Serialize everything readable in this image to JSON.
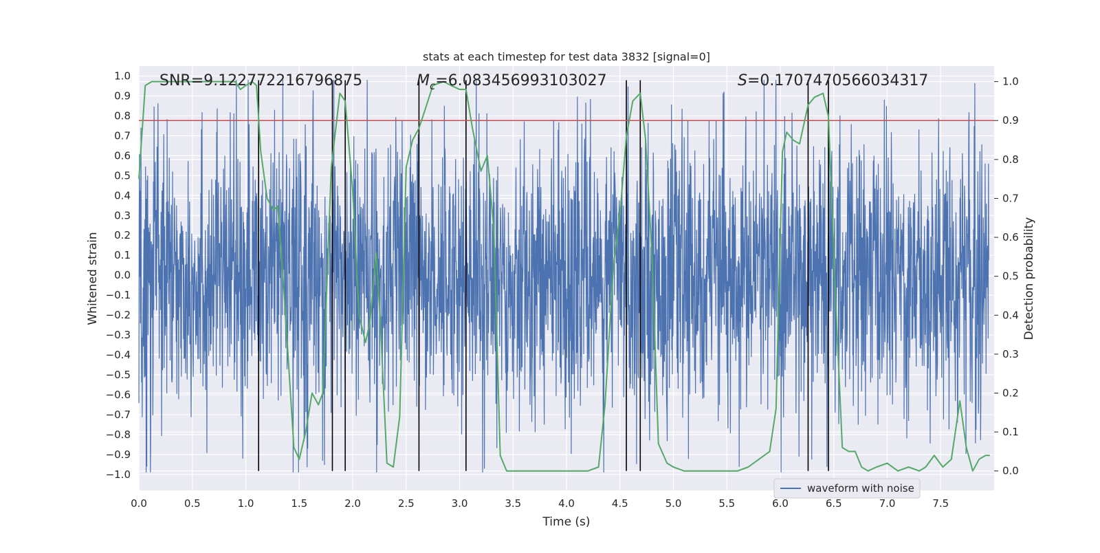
{
  "chart_data": {
    "type": "line",
    "title": "stats at each timestep for test data 3832 [signal=0]",
    "xlabel": "Time (s)",
    "ylabel_left": "Whitened strain",
    "ylabel_right": "Detection probability",
    "xlim": [
      0.0,
      8.0
    ],
    "ylim_left": [
      -1.08,
      1.05
    ],
    "ylim_right": [
      -0.05,
      1.04
    ],
    "x_ticks": [
      "0.0",
      "0.5",
      "1.0",
      "1.5",
      "2.0",
      "2.5",
      "3.0",
      "3.5",
      "4.0",
      "4.5",
      "5.0",
      "5.5",
      "6.0",
      "6.5",
      "7.0",
      "7.5"
    ],
    "y_left_ticks": [
      "1.0",
      "0.9",
      "0.8",
      "0.7",
      "0.6",
      "0.5",
      "0.4",
      "0.3",
      "0.2",
      "0.1",
      "0.0",
      "-0.1",
      "-0.2",
      "-0.3",
      "-0.4",
      "-0.5",
      "-0.6",
      "-0.7",
      "-0.8",
      "-0.9",
      "-1.0"
    ],
    "y_right_ticks": [
      "1.0",
      "0.9",
      "0.8",
      "0.7",
      "0.6",
      "0.5",
      "0.4",
      "0.3",
      "0.2",
      "0.1",
      "0.0"
    ],
    "grid": true,
    "legend_position": "lower-right",
    "annotations": {
      "snr": "SNR=9.122772216796875",
      "mc_symbol": "M",
      "mc_subscript": "c",
      "mc_value": "=6.083456993103027",
      "s_symbol": "S",
      "s_value": "=0.1707470566034317"
    },
    "threshold": 0.9,
    "vertical_lines": [
      1.12,
      1.81,
      1.93,
      2.62,
      3.06,
      4.56,
      4.69,
      6.26,
      6.45
    ],
    "series": [
      {
        "name": "waveform with noise",
        "axis": "left",
        "color": "#4c72b0",
        "description_level": "dense noise spanning roughly -0.9 to 0.9"
      },
      {
        "axis": "right",
        "color": "#55a868",
        "x": [
          0.0,
          0.06,
          0.12,
          0.2,
          0.4,
          0.6,
          0.8,
          0.9,
          0.95,
          1.0,
          1.06,
          1.1,
          1.14,
          1.2,
          1.26,
          1.3,
          1.36,
          1.45,
          1.5,
          1.56,
          1.62,
          1.68,
          1.72,
          1.8,
          1.88,
          1.93,
          2.0,
          2.06,
          2.12,
          2.16,
          2.22,
          2.26,
          2.32,
          2.38,
          2.44,
          2.5,
          2.56,
          2.62,
          2.68,
          2.75,
          2.85,
          2.92,
          3.0,
          3.06,
          3.12,
          3.2,
          3.26,
          3.32,
          3.38,
          3.44,
          3.6,
          3.8,
          4.0,
          4.2,
          4.3,
          4.36,
          4.44,
          4.5,
          4.56,
          4.62,
          4.69,
          4.74,
          4.8,
          4.86,
          4.94,
          5.0,
          5.1,
          5.3,
          5.5,
          5.6,
          5.7,
          5.8,
          5.9,
          5.96,
          6.02,
          6.06,
          6.12,
          6.18,
          6.26,
          6.32,
          6.4,
          6.45,
          6.52,
          6.58,
          6.64,
          6.7,
          6.76,
          6.82,
          6.9,
          7.0,
          7.1,
          7.2,
          7.3,
          7.36,
          7.44,
          7.52,
          7.6,
          7.68,
          7.74,
          7.8,
          7.86,
          7.92,
          7.96
        ],
        "values": [
          0.75,
          0.99,
          1.0,
          1.0,
          1.0,
          1.0,
          1.0,
          1.0,
          0.98,
          0.99,
          1.0,
          0.99,
          0.82,
          0.7,
          0.67,
          0.68,
          0.45,
          0.06,
          0.03,
          0.1,
          0.2,
          0.17,
          0.2,
          0.78,
          0.97,
          0.95,
          0.72,
          0.4,
          0.33,
          0.38,
          0.56,
          0.38,
          0.02,
          0.01,
          0.14,
          0.78,
          0.85,
          0.88,
          0.93,
          0.99,
          1.0,
          0.99,
          0.98,
          0.98,
          0.88,
          0.77,
          0.81,
          0.62,
          0.04,
          0.0,
          0.0,
          0.0,
          0.0,
          0.0,
          0.01,
          0.17,
          0.53,
          0.66,
          0.86,
          0.95,
          0.97,
          0.85,
          0.55,
          0.07,
          0.02,
          0.01,
          0.0,
          0.0,
          0.0,
          0.0,
          0.01,
          0.03,
          0.05,
          0.16,
          0.82,
          0.87,
          0.85,
          0.84,
          0.94,
          0.96,
          0.97,
          0.91,
          0.42,
          0.06,
          0.05,
          0.05,
          0.01,
          0.0,
          0.01,
          0.02,
          0.0,
          0.01,
          0.0,
          0.01,
          0.04,
          0.01,
          0.03,
          0.18,
          0.06,
          0.0,
          0.03,
          0.04,
          0.04
        ]
      }
    ]
  }
}
